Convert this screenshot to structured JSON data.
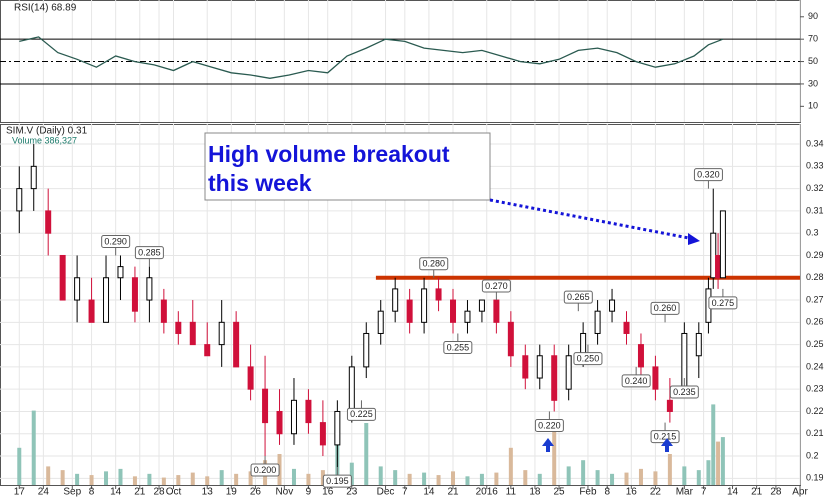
{
  "chart_data": {
    "type": "candlestick",
    "symbol_label": "SIM.V (Daily) 0.31",
    "volume_label": "Volume 386,327",
    "rsi_label": "RSI(14) 68.89",
    "annotation_box": [
      "High volume breakout",
      "this week"
    ],
    "xlim": [
      -4,
      162
    ],
    "xticks": [
      {
        "value": 0,
        "label": "17"
      },
      {
        "value": 5,
        "label": "24"
      },
      {
        "value": 11,
        "label": "Sep"
      },
      {
        "value": 15,
        "label": "8"
      },
      {
        "value": 20,
        "label": "14"
      },
      {
        "value": 25,
        "label": "21"
      },
      {
        "value": 29,
        "label": "28"
      },
      {
        "value": 32,
        "label": "Oct"
      },
      {
        "value": 39,
        "label": "13"
      },
      {
        "value": 44,
        "label": "19"
      },
      {
        "value": 49,
        "label": "26"
      },
      {
        "value": 55,
        "label": "Nov"
      },
      {
        "value": 60,
        "label": "9"
      },
      {
        "value": 64,
        "label": "16"
      },
      {
        "value": 69,
        "label": "23"
      },
      {
        "value": 76,
        "label": "Dec"
      },
      {
        "value": 80,
        "label": "7"
      },
      {
        "value": 85,
        "label": "14"
      },
      {
        "value": 90,
        "label": "21"
      },
      {
        "value": 97,
        "label": "2016"
      },
      {
        "value": 102,
        "label": "11"
      },
      {
        "value": 107,
        "label": "18"
      },
      {
        "value": 112,
        "label": "25"
      },
      {
        "value": 118,
        "label": "Feb"
      },
      {
        "value": 122,
        "label": "8"
      },
      {
        "value": 127,
        "label": "16"
      },
      {
        "value": 132,
        "label": "22"
      },
      {
        "value": 138,
        "label": "Mar"
      },
      {
        "value": 142,
        "label": "7"
      },
      {
        "value": 148,
        "label": "14"
      },
      {
        "value": 153,
        "label": "21"
      },
      {
        "value": 157,
        "label": "28"
      },
      {
        "value": 162,
        "label": "Apr"
      }
    ],
    "ylim": [
      0.187,
      0.349
    ],
    "yticks": [
      0.19,
      0.2,
      0.21,
      0.22,
      0.23,
      0.24,
      0.25,
      0.26,
      0.27,
      0.28,
      0.29,
      0.3,
      0.31,
      0.32,
      0.33,
      0.34
    ],
    "grid": true,
    "up_color": "#000000",
    "down_color": "#d0103a",
    "x": [
      0,
      3,
      6,
      9,
      12,
      15,
      18,
      21,
      24,
      27,
      30,
      33,
      36,
      39,
      42,
      45,
      48,
      51,
      54,
      57,
      60,
      63,
      66,
      69,
      72,
      75,
      78,
      81,
      84,
      87,
      90,
      93,
      96,
      99,
      102,
      105,
      108,
      111,
      114,
      117,
      120,
      123,
      126,
      129,
      132,
      135,
      138,
      141,
      143,
      144,
      145,
      146
    ],
    "open": [
      0.31,
      0.32,
      0.31,
      0.29,
      0.27,
      0.27,
      0.26,
      0.28,
      0.28,
      0.27,
      0.27,
      0.26,
      0.26,
      0.25,
      0.25,
      0.26,
      0.24,
      0.23,
      0.22,
      0.21,
      0.225,
      0.215,
      0.205,
      0.22,
      0.24,
      0.255,
      0.265,
      0.27,
      0.26,
      0.275,
      0.27,
      0.26,
      0.265,
      0.27,
      0.26,
      0.245,
      0.235,
      0.245,
      0.23,
      0.245,
      0.255,
      0.265,
      0.26,
      0.25,
      0.24,
      0.225,
      0.23,
      0.245,
      0.26,
      0.28,
      0.29,
      0.28
    ],
    "high": [
      0.33,
      0.34,
      0.32,
      0.29,
      0.29,
      0.28,
      0.29,
      0.29,
      0.285,
      0.285,
      0.275,
      0.265,
      0.27,
      0.26,
      0.27,
      0.265,
      0.25,
      0.245,
      0.23,
      0.235,
      0.23,
      0.225,
      0.225,
      0.245,
      0.26,
      0.27,
      0.28,
      0.275,
      0.28,
      0.28,
      0.275,
      0.27,
      0.27,
      0.27,
      0.265,
      0.25,
      0.25,
      0.25,
      0.25,
      0.26,
      0.27,
      0.275,
      0.265,
      0.255,
      0.245,
      0.235,
      0.26,
      0.26,
      0.28,
      0.32,
      0.3,
      0.31
    ],
    "low": [
      0.3,
      0.31,
      0.29,
      0.27,
      0.26,
      0.26,
      0.26,
      0.27,
      0.26,
      0.26,
      0.255,
      0.25,
      0.25,
      0.245,
      0.24,
      0.24,
      0.225,
      0.2,
      0.205,
      0.205,
      0.21,
      0.2,
      0.195,
      0.215,
      0.235,
      0.25,
      0.26,
      0.255,
      0.255,
      0.265,
      0.255,
      0.255,
      0.26,
      0.255,
      0.24,
      0.23,
      0.23,
      0.22,
      0.225,
      0.24,
      0.25,
      0.26,
      0.25,
      0.235,
      0.225,
      0.215,
      0.23,
      0.235,
      0.255,
      0.275,
      0.275,
      0.28
    ],
    "close": [
      0.32,
      0.33,
      0.3,
      0.27,
      0.28,
      0.26,
      0.28,
      0.285,
      0.265,
      0.28,
      0.26,
      0.255,
      0.25,
      0.245,
      0.26,
      0.24,
      0.23,
      0.215,
      0.21,
      0.225,
      0.215,
      0.205,
      0.22,
      0.24,
      0.255,
      0.265,
      0.275,
      0.26,
      0.275,
      0.27,
      0.26,
      0.265,
      0.27,
      0.26,
      0.245,
      0.235,
      0.245,
      0.225,
      0.245,
      0.255,
      0.265,
      0.27,
      0.255,
      0.24,
      0.23,
      0.22,
      0.255,
      0.255,
      0.275,
      0.3,
      0.28,
      0.31
    ],
    "volume": [
      300000,
      600000,
      150000,
      120000,
      90000,
      80000,
      110000,
      130000,
      70000,
      90000,
      60000,
      80000,
      100000,
      70000,
      120000,
      90000,
      110000,
      200000,
      250000,
      130000,
      90000,
      120000,
      350000,
      180000,
      500000,
      150000,
      120000,
      90000,
      100000,
      80000,
      110000,
      70000,
      90000,
      100000,
      300000,
      120000,
      90000,
      450000,
      150000,
      200000,
      120000,
      90000,
      100000,
      130000,
      110000,
      250000,
      150000,
      120000,
      200000,
      650000,
      350000,
      386327
    ],
    "volume_ylim": [
      0,
      1000000
    ],
    "volume_up_color": "#8fc4b8",
    "volume_down_color": "#d9b99b",
    "resistance": {
      "value": 0.28,
      "x": [
        74,
        162
      ],
      "color": "#cc3300"
    },
    "annotations": [
      {
        "x": 20,
        "value": 0.29,
        "label": "0.290",
        "position": "above"
      },
      {
        "x": 27,
        "value": 0.285,
        "label": "0.285",
        "position": "above"
      },
      {
        "x": 51,
        "value": 0.2,
        "label": "0.200",
        "position": "below"
      },
      {
        "x": 66,
        "value": 0.195,
        "label": "0.195",
        "position": "below"
      },
      {
        "x": 71,
        "value": 0.225,
        "label": "0.225",
        "position": "below"
      },
      {
        "x": 86,
        "value": 0.28,
        "label": "0.280",
        "position": "above"
      },
      {
        "x": 91,
        "value": 0.255,
        "label": "0.255",
        "position": "below"
      },
      {
        "x": 99,
        "value": 0.27,
        "label": "0.270",
        "position": "above"
      },
      {
        "x": 110,
        "value": 0.22,
        "label": "0.220",
        "position": "below"
      },
      {
        "x": 116,
        "value": 0.265,
        "label": "0.265",
        "position": "above"
      },
      {
        "x": 118,
        "value": 0.25,
        "label": "0.250",
        "position": "below"
      },
      {
        "x": 128,
        "value": 0.24,
        "label": "0.240",
        "position": "below"
      },
      {
        "x": 134,
        "value": 0.26,
        "label": "0.260",
        "position": "above"
      },
      {
        "x": 138,
        "value": 0.235,
        "label": "0.235",
        "position": "below"
      },
      {
        "x": 134,
        "value": 0.215,
        "label": "0.215",
        "position": "below"
      },
      {
        "x": 143,
        "value": 0.32,
        "label": "0.320",
        "position": "above"
      },
      {
        "x": 146,
        "value": 0.275,
        "label": "0.275",
        "position": "below"
      }
    ],
    "rsi": {
      "ylim": [
        -4,
        105
      ],
      "yticks": [
        10,
        30,
        50,
        70,
        90
      ],
      "levels": [
        30,
        70
      ],
      "midline": 50,
      "color": "#2a5a50",
      "x": [
        0,
        4,
        8,
        12,
        16,
        20,
        24,
        28,
        32,
        36,
        40,
        44,
        48,
        52,
        56,
        60,
        64,
        68,
        72,
        76,
        80,
        84,
        88,
        92,
        96,
        100,
        104,
        108,
        112,
        116,
        120,
        124,
        128,
        132,
        136,
        140,
        143,
        146
      ],
      "values": [
        68,
        72,
        58,
        52,
        45,
        55,
        50,
        47,
        42,
        50,
        45,
        40,
        38,
        35,
        38,
        42,
        40,
        55,
        62,
        70,
        68,
        62,
        60,
        58,
        60,
        55,
        50,
        48,
        52,
        60,
        62,
        58,
        50,
        45,
        48,
        55,
        65,
        70
      ]
    }
  }
}
